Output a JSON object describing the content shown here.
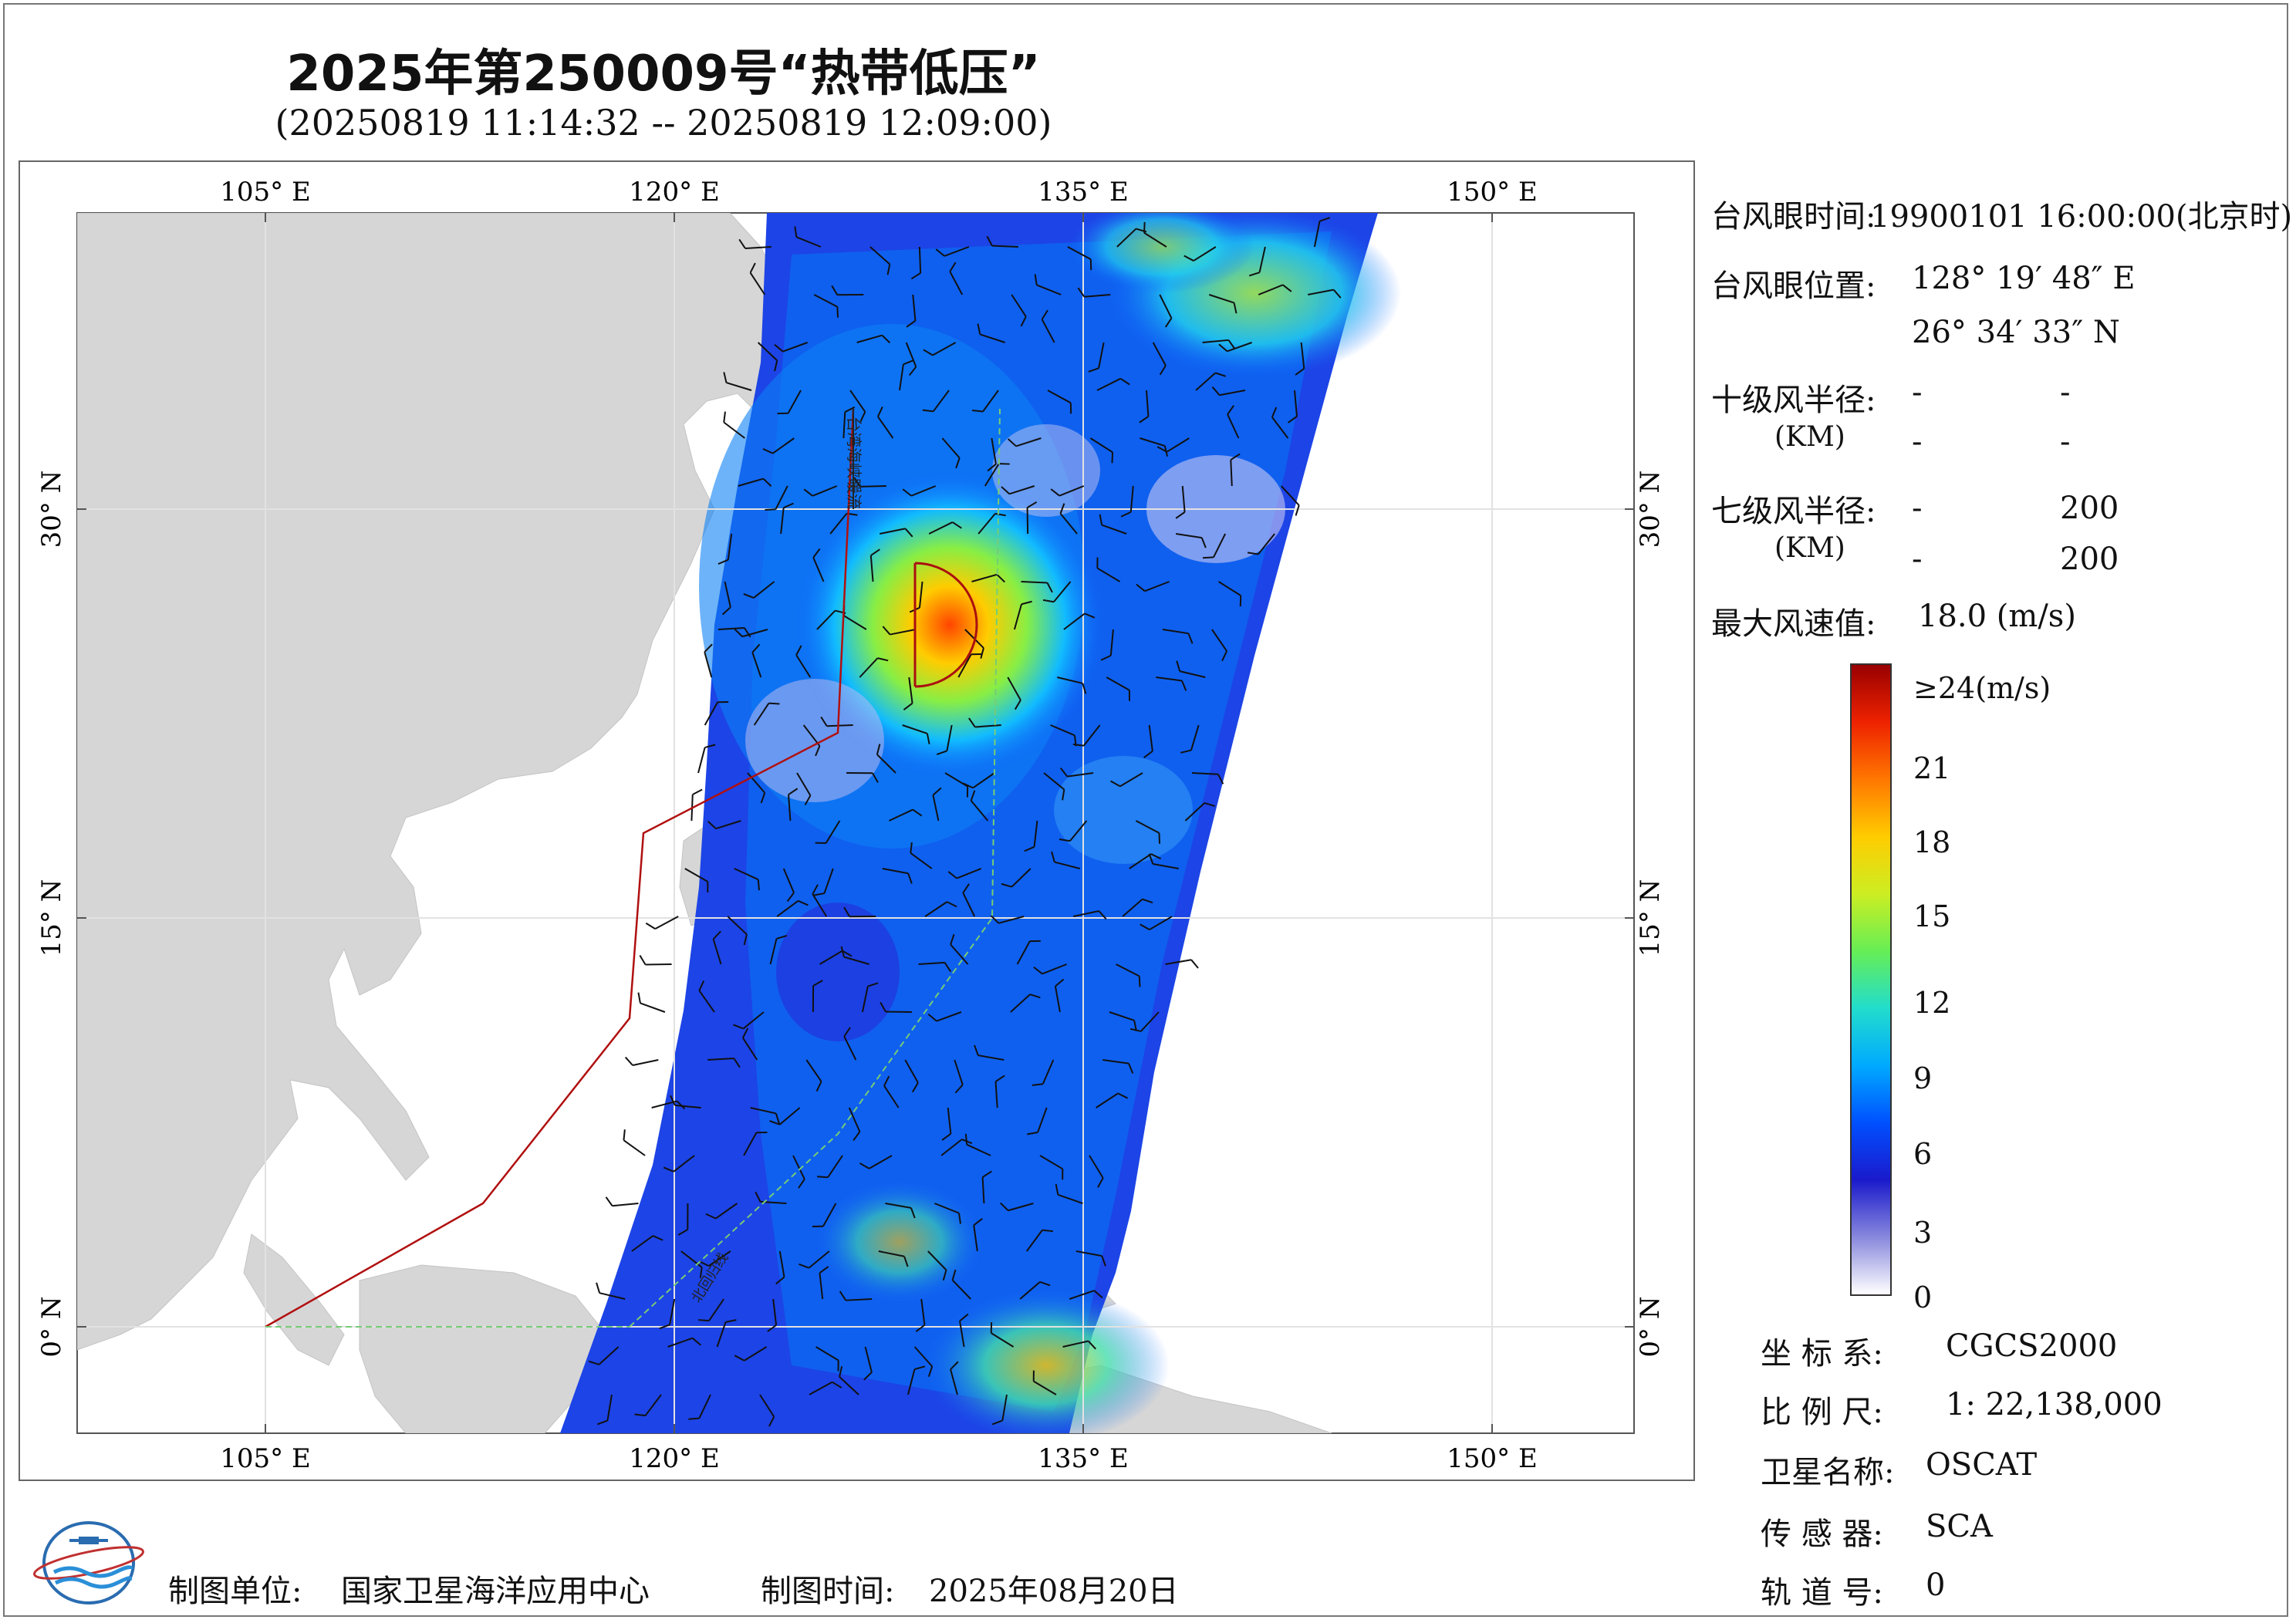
{
  "header": {
    "title": "2025年第250009号“热带低压”",
    "subtitle": "(20250819 11:14:32 -- 20250819 12:09:00)"
  },
  "map": {
    "lon_labels": [
      "105° E",
      "120° E",
      "135° E",
      "150° E"
    ],
    "lat_labels": [
      "30° N",
      "15° N",
      "0° N"
    ],
    "boundary_labels": [
      "台湾海峡暖流",
      "北回归线"
    ],
    "colors": {
      "land": "#d6d6d6",
      "ocean": "#ffffff",
      "track_line": "#b01010",
      "grid": "#cfcfcf"
    }
  },
  "info": {
    "eye_time_label": "台风眼时间:",
    "eye_time_value": "19900101 16:00:00(北京时)",
    "eye_pos_label": "台风眼位置:",
    "eye_lon": "128° 19′ 48″ E",
    "eye_lat": "26° 34′ 33″ N",
    "r10_label": "十级风半径:",
    "r10_unit": "(KM)",
    "r10_row1": [
      "-",
      "-"
    ],
    "r10_row2": [
      "-",
      "-"
    ],
    "r7_label": "七级风半径:",
    "r7_unit": "(KM)",
    "r7_row1": [
      "-",
      "200"
    ],
    "r7_row2": [
      "-",
      "200"
    ],
    "max_wind_label": "最大风速值:",
    "max_wind_value": "18.0 (m/s)"
  },
  "colorbar": {
    "top_label": "≥24(m/s)",
    "ticks": [
      "21",
      "18",
      "15",
      "12",
      "9",
      "6",
      "3",
      "0"
    ],
    "stops": [
      "#ffffff",
      "#8888dd",
      "#1a1acc",
      "#0050ff",
      "#00aaff",
      "#22ddcc",
      "#66ee55",
      "#ccee22",
      "#ffcc00",
      "#ff7700",
      "#ee2200",
      "#990000"
    ]
  },
  "metadata": {
    "crs_label": "坐 标 系:",
    "crs_value": "CGCS2000",
    "scale_label": "比 例 尺:",
    "scale_value": "1: 22,138,000",
    "satellite_label": "卫星名称:",
    "satellite_value": "OSCAT",
    "sensor_label": "传 感 器:",
    "sensor_value": "SCA",
    "orbit_label": "轨 道 号:",
    "orbit_value": "0"
  },
  "footer": {
    "maker_label": "制图单位:",
    "maker_value": "国家卫星海洋应用中心",
    "date_label": "制图时间:",
    "date_value": "2025年08月20日"
  }
}
